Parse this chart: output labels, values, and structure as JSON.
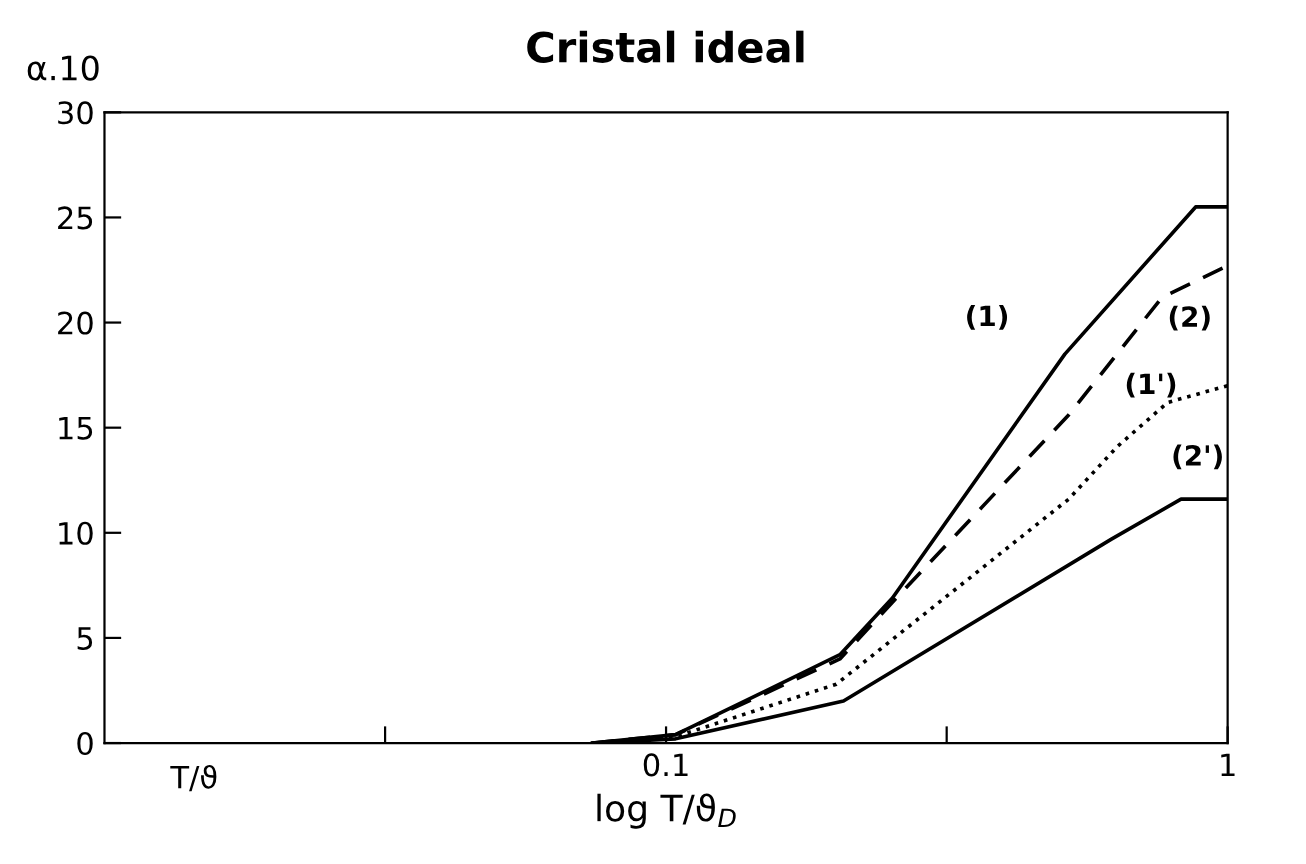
{
  "chart_data": {
    "type": "line",
    "title": "Cristal ideal",
    "xlabel": "log T/ϑ$_{D}$",
    "ylabel": "α.10",
    "log": "x",
    "grid": false,
    "legend": false,
    "marker": "none",
    "xlim": [
      0.01,
      1
    ],
    "xticks": [
      {
        "value": 0.0316,
        "label": null
      },
      0.1,
      {
        "value": 0.316,
        "label": null
      },
      1
    ],
    "ylim": [
      0,
      30
    ],
    "yticks": [
      0,
      5,
      10,
      15,
      20,
      25,
      30
    ],
    "annotations": [
      "T/ϑ"
    ],
    "series": [
      {
        "name": "(1)",
        "color": "#000000",
        "line_style": "solid",
        "x": [
          0.074,
          0.104,
          0.204,
          0.253,
          0.513,
          0.877,
          1.0
        ],
        "values": [
          0,
          0.4,
          4.2,
          6.9,
          18.5,
          25.5,
          25.5
        ]
      },
      {
        "name": "(2)",
        "color": "#000000",
        "line_style": "dashed",
        "x": [
          0.074,
          0.104,
          0.204,
          0.253,
          0.521,
          0.764,
          1.0
        ],
        "values": [
          0,
          0.4,
          4.0,
          6.7,
          15.6,
          21.2,
          22.7
        ]
      },
      {
        "name": "(1')",
        "color": "#000000",
        "line_style": "dotted",
        "x": [
          0.074,
          0.104,
          0.201,
          0.521,
          0.636,
          0.782,
          1.0
        ],
        "values": [
          0,
          0.3,
          2.8,
          11.6,
          14.1,
          16.2,
          17.0
        ]
      },
      {
        "name": "(2')",
        "color": "#000000",
        "line_style": "solid",
        "x": [
          0.074,
          0.104,
          0.207,
          0.621,
          0.826,
          1.0
        ],
        "values": [
          0,
          0.2,
          2.0,
          9.7,
          11.6,
          11.6
        ]
      }
    ]
  }
}
